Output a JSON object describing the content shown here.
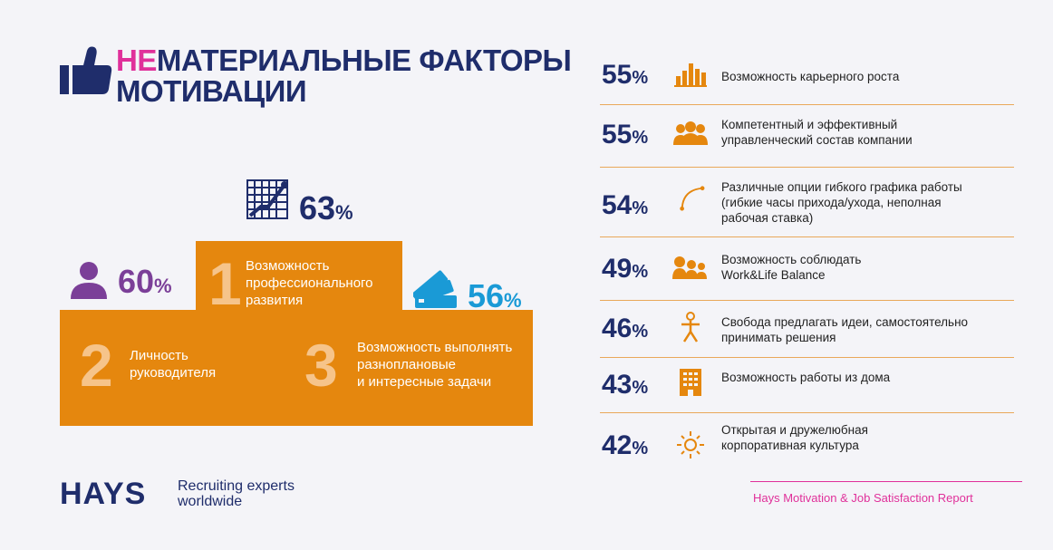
{
  "title": {
    "highlight": "НЕ",
    "line1_rest": "МАТЕРИАЛЬНЫЕ ФАКТОРЫ",
    "line2": "МОТИВАЦИИ"
  },
  "podium": {
    "first": {
      "rank": "1",
      "label_lines": [
        "Возможность",
        "профессионального",
        "развития"
      ],
      "percent": "63",
      "color": "#1f2d6b"
    },
    "second": {
      "rank": "2",
      "label_lines": [
        "Личность",
        "руководителя"
      ],
      "percent": "60",
      "color": "#7b3f98"
    },
    "third": {
      "rank": "3",
      "label_lines": [
        "Возможность выполнять",
        "разноплановые",
        "и интересные задачи"
      ],
      "percent": "56",
      "color": "#1a9ad6"
    },
    "percent_sign": "%"
  },
  "factors": [
    {
      "percent": "55",
      "icon": "bar-chart-icon",
      "lines": [
        "Возможность карьерного роста"
      ]
    },
    {
      "percent": "55",
      "icon": "team-icon",
      "lines": [
        "Компетентный и эффективный",
        "управленческий состав компании"
      ]
    },
    {
      "percent": "54",
      "icon": "curve-icon",
      "lines": [
        "Различные опции гибкого графика работы",
        "(гибкие часы прихода/ухода, неполная",
        "рабочая ставка)"
      ]
    },
    {
      "percent": "49",
      "icon": "people-group-icon",
      "lines": [
        "Возможность соблюдать",
        "Work&Life Balance"
      ]
    },
    {
      "percent": "46",
      "icon": "person-icon",
      "lines": [
        "Свобода предлагать идеи, самостоятельно",
        "принимать решения"
      ]
    },
    {
      "percent": "43",
      "icon": "building-icon",
      "lines": [
        "Возможность работы из дома"
      ]
    },
    {
      "percent": "42",
      "icon": "sun-icon",
      "lines": [
        "Открытая и дружелюбная",
        "корпоративная культура"
      ]
    }
  ],
  "footer": {
    "brand": "HAYS",
    "tagline_lines": [
      "Recruiting experts",
      "worldwide"
    ],
    "report": "Hays Motivation & Job Satisfaction Report"
  },
  "colors": {
    "navy": "#1f2d6b",
    "orange": "#e5870e",
    "pink": "#e0309a",
    "purple": "#7b3f98",
    "blue": "#1a9ad6"
  }
}
